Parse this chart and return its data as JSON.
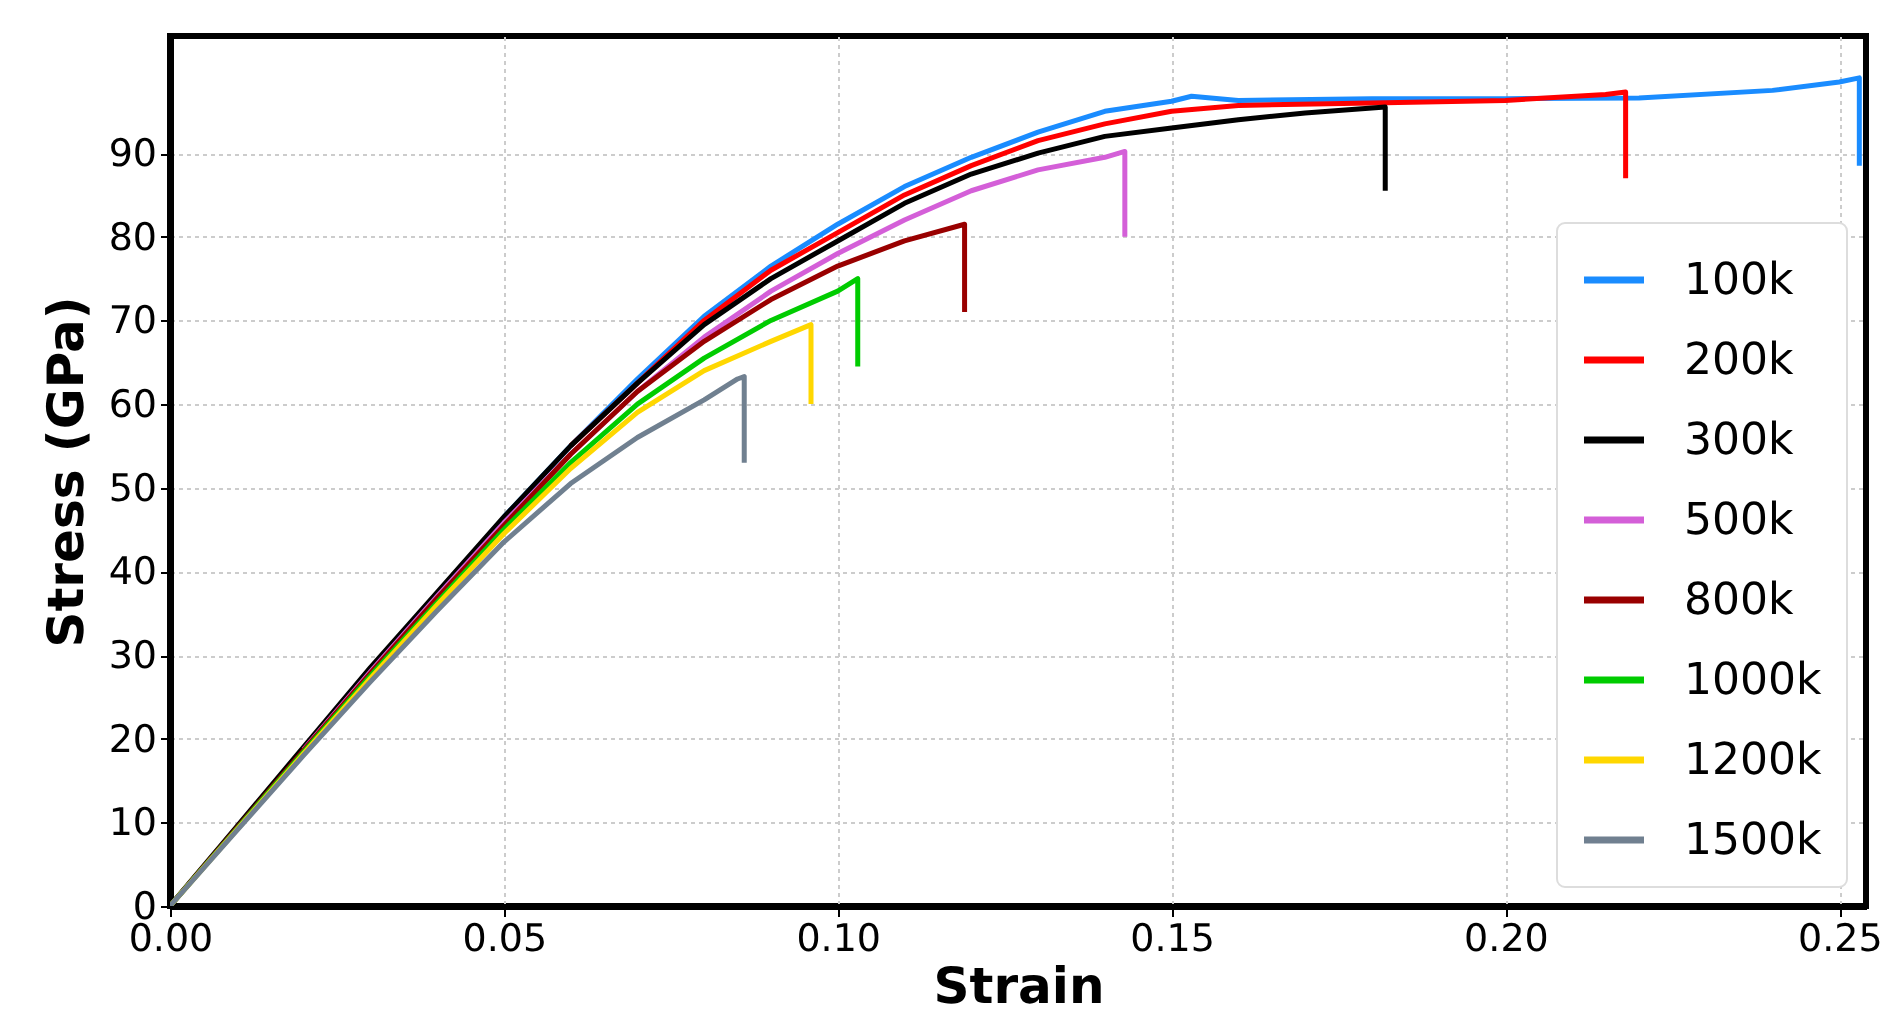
{
  "chart_data": {
    "type": "line",
    "xlabel": "Strain",
    "ylabel": "Stress (GPa)",
    "xlim": [
      0,
      0.254
    ],
    "ylim": [
      0,
      104
    ],
    "xticks": [
      {
        "value": 0,
        "label": "0.00"
      },
      {
        "value": 0.05,
        "label": "0.05"
      },
      {
        "value": 0.1,
        "label": "0.10"
      },
      {
        "value": 0.15,
        "label": "0.15"
      },
      {
        "value": 0.2,
        "label": "0.20"
      },
      {
        "value": 0.25,
        "label": "0.25"
      }
    ],
    "yticks": [
      0,
      10,
      20,
      30,
      40,
      50,
      60,
      70,
      80,
      90
    ],
    "grid": true,
    "legend": "bottom right",
    "line_style": "solid",
    "marker": "none",
    "series": [
      {
        "name": "100k",
        "color": "#1a8cff",
        "x": [
          0.05,
          0.06,
          0.07,
          0.08,
          0.09,
          0.1,
          0.11,
          0.12,
          0.13,
          0.14,
          0.15,
          0.153,
          0.16,
          0.18,
          0.2,
          0.22,
          0.24,
          0.25,
          0.253,
          0.253
        ],
        "values": [
          46.5,
          55,
          63,
          70.5,
          76.5,
          81.5,
          86,
          89.5,
          92.5,
          95,
          96.2,
          96.8,
          96.3,
          96.5,
          96.5,
          96.6,
          97.5,
          98.5,
          99,
          88.5
        ]
      },
      {
        "name": "200k",
        "color": "#ff0000",
        "x": [
          0.06,
          0.07,
          0.08,
          0.09,
          0.1,
          0.11,
          0.12,
          0.13,
          0.14,
          0.15,
          0.16,
          0.18,
          0.2,
          0.215,
          0.218,
          0.218
        ],
        "values": [
          55,
          62.5,
          70,
          76,
          80.5,
          85,
          88.5,
          91.5,
          93.5,
          95,
          95.7,
          96,
          96.3,
          97,
          97.3,
          87
        ]
      },
      {
        "name": "300k",
        "color": "#000000",
        "x": [
          0,
          0.01,
          0.02,
          0.03,
          0.04,
          0.05,
          0.06,
          0.07,
          0.08,
          0.09,
          0.1,
          0.11,
          0.12,
          0.13,
          0.14,
          0.15,
          0.16,
          0.17,
          0.182,
          0.182
        ],
        "values": [
          0,
          9.5,
          19,
          28.5,
          37.5,
          46.5,
          55,
          62.5,
          69.5,
          75,
          79.5,
          84,
          87.5,
          90,
          92,
          93,
          94,
          94.8,
          95.5,
          85.5
        ]
      },
      {
        "name": "500k",
        "color": "#d45fd8",
        "x": [
          0.02,
          0.03,
          0.04,
          0.05,
          0.06,
          0.07,
          0.08,
          0.09,
          0.1,
          0.11,
          0.12,
          0.13,
          0.14,
          0.143,
          0.143
        ],
        "values": [
          18.7,
          28,
          37,
          45.8,
          54,
          61.5,
          68,
          73.5,
          78,
          82,
          85.5,
          88,
          89.5,
          90.2,
          80
        ]
      },
      {
        "name": "800k",
        "color": "#990000",
        "x": [
          0,
          0.01,
          0.02,
          0.03,
          0.04,
          0.05,
          0.06,
          0.07,
          0.08,
          0.09,
          0.1,
          0.11,
          0.119,
          0.119
        ],
        "values": [
          0,
          9.3,
          18.6,
          27.8,
          36.8,
          45.5,
          54,
          61.5,
          67.5,
          72.5,
          76.5,
          79.5,
          81.5,
          71
        ]
      },
      {
        "name": "1000k",
        "color": "#00cc00",
        "x": [
          0,
          0.01,
          0.02,
          0.03,
          0.04,
          0.05,
          0.06,
          0.07,
          0.08,
          0.09,
          0.1,
          0.103,
          0.103
        ],
        "values": [
          0,
          9.2,
          18.4,
          27.5,
          36.3,
          45,
          53,
          60,
          65.5,
          70,
          73.5,
          75,
          64.5
        ]
      },
      {
        "name": "1200k",
        "color": "#ffd700",
        "x": [
          0,
          0.01,
          0.02,
          0.03,
          0.04,
          0.05,
          0.06,
          0.07,
          0.08,
          0.09,
          0.096,
          0.096
        ],
        "values": [
          0,
          9.1,
          18.2,
          27.2,
          36,
          44.5,
          52.3,
          59,
          64,
          67.5,
          69.5,
          60
        ]
      },
      {
        "name": "1500k",
        "color": "#708090",
        "x": [
          0,
          0.01,
          0.02,
          0.03,
          0.04,
          0.05,
          0.06,
          0.07,
          0.08,
          0.085,
          0.086,
          0.086
        ],
        "values": [
          0,
          9,
          18,
          26.8,
          35.3,
          43.5,
          50.5,
          56,
          60.5,
          63,
          63.3,
          53
        ]
      }
    ]
  }
}
